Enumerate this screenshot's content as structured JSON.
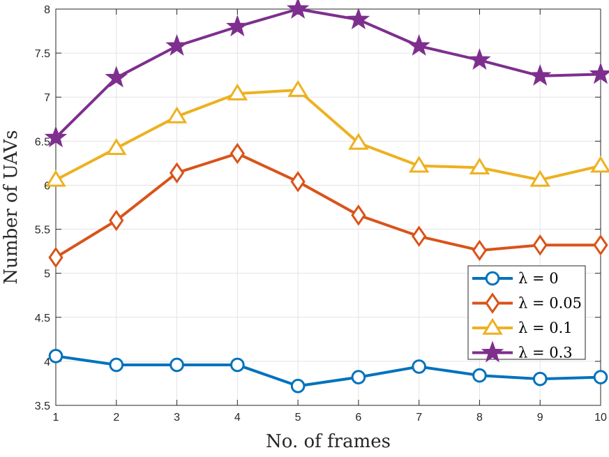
{
  "chart_data": {
    "type": "line",
    "title": "",
    "xlabel": "No. of frames",
    "ylabel": "Number of UAVs",
    "x": [
      1,
      2,
      3,
      4,
      5,
      6,
      7,
      8,
      9,
      10
    ],
    "xlim": [
      1,
      10
    ],
    "ylim": [
      3.5,
      8
    ],
    "xticks": [
      "1",
      "2",
      "3",
      "4",
      "5",
      "6",
      "7",
      "8",
      "9",
      "10"
    ],
    "yticks": [
      "3.5",
      "4",
      "4.5",
      "5",
      "5.5",
      "6",
      "6.5",
      "7",
      "7.5",
      "8"
    ],
    "grid": true,
    "legend_position": "lower-right",
    "series": [
      {
        "name": "λ = 0",
        "color": "#0072BD",
        "marker": "circle",
        "values": [
          4.06,
          3.96,
          3.96,
          3.96,
          3.72,
          3.82,
          3.94,
          3.84,
          3.8,
          3.82
        ]
      },
      {
        "name": "λ = 0.05",
        "color": "#D95319",
        "marker": "diamond",
        "values": [
          5.18,
          5.6,
          6.14,
          6.36,
          6.04,
          5.66,
          5.42,
          5.26,
          5.32,
          5.32
        ]
      },
      {
        "name": "λ = 0.1",
        "color": "#EDB120",
        "marker": "triangle",
        "values": [
          6.06,
          6.42,
          6.78,
          7.04,
          7.08,
          6.48,
          6.22,
          6.2,
          6.06,
          6.22
        ]
      },
      {
        "name": "λ = 0.3",
        "color": "#7E2F8E",
        "marker": "star",
        "values": [
          6.54,
          7.22,
          7.58,
          7.8,
          8.0,
          7.88,
          7.58,
          7.42,
          7.24,
          7.26
        ]
      }
    ]
  }
}
